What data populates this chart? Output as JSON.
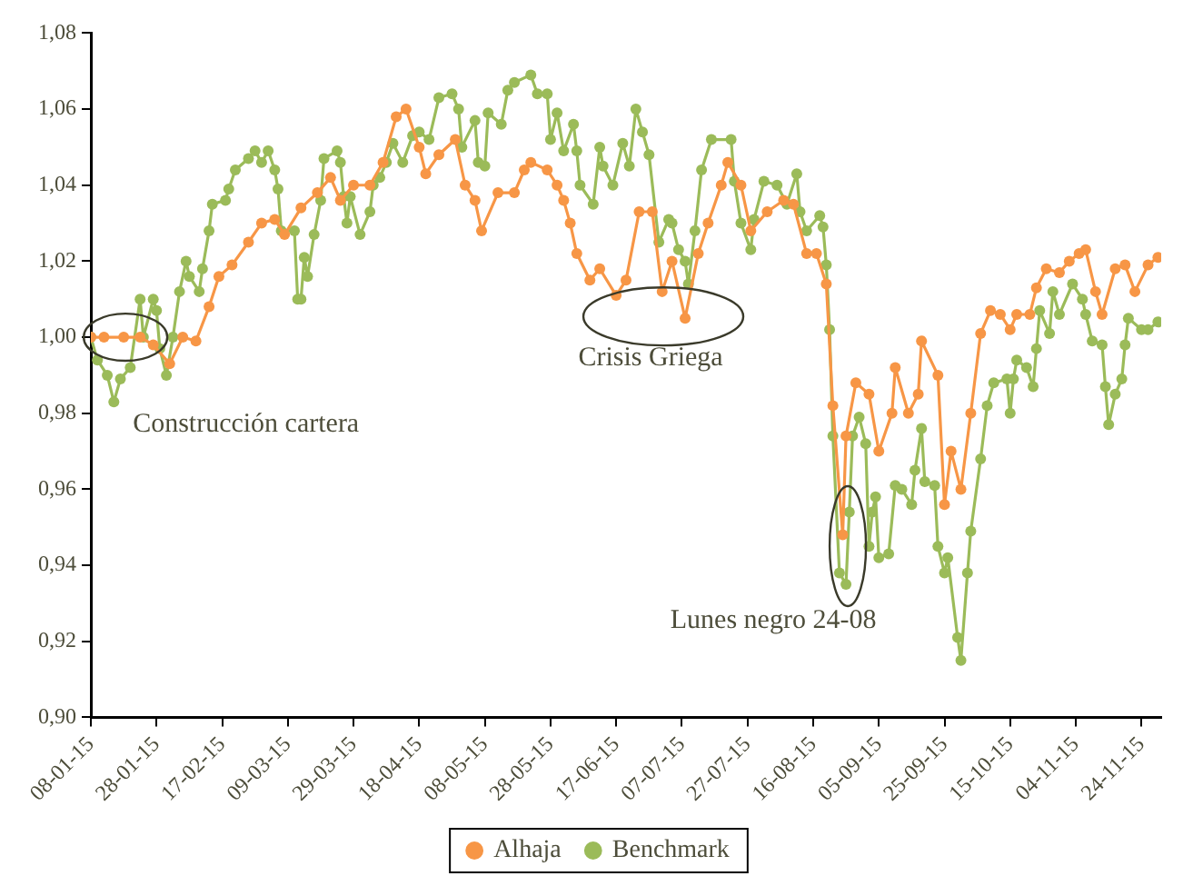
{
  "chart_data": {
    "type": "line",
    "grid": false,
    "legend": "bottom",
    "marker": "circle",
    "line_style": "solid",
    "xlim": [
      "2015-01-08",
      "2015-11-30"
    ],
    "xticks": [
      {
        "value": "2015-01-08",
        "label": "08-01-15"
      },
      {
        "value": "2015-01-28",
        "label": "28-01-15"
      },
      {
        "value": "2015-02-17",
        "label": "17-02-15"
      },
      {
        "value": "2015-03-09",
        "label": "09-03-15"
      },
      {
        "value": "2015-03-29",
        "label": "29-03-15"
      },
      {
        "value": "2015-04-18",
        "label": "18-04-15"
      },
      {
        "value": "2015-05-08",
        "label": "08-05-15"
      },
      {
        "value": "2015-05-28",
        "label": "28-05-15"
      },
      {
        "value": "2015-06-17",
        "label": "17-06-15"
      },
      {
        "value": "2015-07-07",
        "label": "07-07-15"
      },
      {
        "value": "2015-07-27",
        "label": "27-07-15"
      },
      {
        "value": "2015-08-16",
        "label": "16-08-15"
      },
      {
        "value": "2015-09-05",
        "label": "05-09-15"
      },
      {
        "value": "2015-09-25",
        "label": "25-09-15"
      },
      {
        "value": "2015-10-15",
        "label": "15-10-15"
      },
      {
        "value": "2015-11-04",
        "label": "04-11-15"
      },
      {
        "value": "2015-11-24",
        "label": "24-11-15"
      }
    ],
    "ylim": [
      0.9,
      1.08
    ],
    "yticks": [
      {
        "value": 0.9,
        "label": "0,90"
      },
      {
        "value": 0.92,
        "label": "0,92"
      },
      {
        "value": 0.94,
        "label": "0,94"
      },
      {
        "value": 0.96,
        "label": "0,96"
      },
      {
        "value": 0.98,
        "label": "0,98"
      },
      {
        "value": 1.0,
        "label": "1,00"
      },
      {
        "value": 1.02,
        "label": "1,02"
      },
      {
        "value": 1.04,
        "label": "1,04"
      },
      {
        "value": 1.06,
        "label": "1,06"
      },
      {
        "value": 1.08,
        "label": "1,08"
      }
    ],
    "annotations": [
      {
        "text": "Construcción cartera",
        "x": "2015-01-18",
        "y": 1.0
      },
      {
        "text": "Crisis Griega",
        "x": "2015-07-08",
        "y": 1.005
      },
      {
        "text": "Lunes negro 24-08",
        "x": "2015-08-26",
        "y": 0.935
      }
    ],
    "series": [
      {
        "name": "Alhaja",
        "color": "#f79646",
        "x": [
          "2015-01-08",
          "2015-01-12",
          "2015-01-18",
          "2015-01-23",
          "2015-01-27",
          "2015-02-01",
          "2015-02-05",
          "2015-02-09",
          "2015-02-13",
          "2015-02-16",
          "2015-02-20",
          "2015-02-25",
          "2015-03-01",
          "2015-03-05",
          "2015-03-08",
          "2015-03-13",
          "2015-03-18",
          "2015-03-22",
          "2015-03-25",
          "2015-03-29",
          "2015-04-03",
          "2015-04-07",
          "2015-04-11",
          "2015-04-14",
          "2015-04-18",
          "2015-04-20",
          "2015-04-24",
          "2015-04-29",
          "2015-05-02",
          "2015-05-05",
          "2015-05-07",
          "2015-05-12",
          "2015-05-17",
          "2015-05-20",
          "2015-05-22",
          "2015-05-27",
          "2015-05-30",
          "2015-06-01",
          "2015-06-03",
          "2015-06-05",
          "2015-06-09",
          "2015-06-12",
          "2015-06-17",
          "2015-06-20",
          "2015-06-24",
          "2015-06-28",
          "2015-07-01",
          "2015-07-04",
          "2015-07-08",
          "2015-07-12",
          "2015-07-15",
          "2015-07-19",
          "2015-07-21",
          "2015-07-25",
          "2015-07-28",
          "2015-08-02",
          "2015-08-07",
          "2015-08-10",
          "2015-08-14",
          "2015-08-17",
          "2015-08-20",
          "2015-08-22",
          "2015-08-25",
          "2015-08-26",
          "2015-08-29",
          "2015-09-02",
          "2015-09-05",
          "2015-09-09",
          "2015-09-10",
          "2015-09-14",
          "2015-09-17",
          "2015-09-18",
          "2015-09-23",
          "2015-09-25",
          "2015-09-27",
          "2015-09-30",
          "2015-10-03",
          "2015-10-06",
          "2015-10-09",
          "2015-10-12",
          "2015-10-15",
          "2015-10-17",
          "2015-10-21",
          "2015-10-23",
          "2015-10-26",
          "2015-10-30",
          "2015-11-02",
          "2015-11-05",
          "2015-11-07",
          "2015-11-10",
          "2015-11-12",
          "2015-11-16",
          "2015-11-19",
          "2015-11-22",
          "2015-11-26",
          "2015-11-29"
        ],
        "values": [
          1.0,
          1.0,
          1.0,
          1.0,
          0.998,
          0.993,
          1.0,
          0.999,
          1.008,
          1.016,
          1.019,
          1.025,
          1.03,
          1.031,
          1.027,
          1.034,
          1.038,
          1.042,
          1.036,
          1.04,
          1.04,
          1.046,
          1.058,
          1.06,
          1.05,
          1.043,
          1.048,
          1.052,
          1.04,
          1.036,
          1.028,
          1.038,
          1.038,
          1.044,
          1.046,
          1.044,
          1.04,
          1.036,
          1.03,
          1.022,
          1.015,
          1.018,
          1.011,
          1.015,
          1.033,
          1.033,
          1.012,
          1.02,
          1.005,
          1.022,
          1.03,
          1.04,
          1.046,
          1.04,
          1.028,
          1.033,
          1.036,
          1.035,
          1.022,
          1.022,
          1.014,
          0.982,
          0.948,
          0.974,
          0.988,
          0.985,
          0.97,
          0.98,
          0.992,
          0.98,
          0.985,
          0.999,
          0.99,
          0.956,
          0.97,
          0.96,
          0.98,
          1.001,
          1.007,
          1.006,
          1.002,
          1.006,
          1.006,
          1.013,
          1.018,
          1.017,
          1.02,
          1.022,
          1.023,
          1.012,
          1.006,
          1.018,
          1.019,
          1.012,
          1.019,
          1.021
        ]
      },
      {
        "name": "Benchmark",
        "color": "#9bbb59",
        "x": [
          "2015-01-08",
          "2015-01-10",
          "2015-01-13",
          "2015-01-15",
          "2015-01-17",
          "2015-01-20",
          "2015-01-23",
          "2015-01-24",
          "2015-01-27",
          "2015-01-28",
          "2015-01-29",
          "2015-01-31",
          "2015-02-02",
          "2015-02-04",
          "2015-02-06",
          "2015-02-07",
          "2015-02-10",
          "2015-02-11",
          "2015-02-13",
          "2015-02-14",
          "2015-02-18",
          "2015-02-19",
          "2015-02-21",
          "2015-02-25",
          "2015-02-27",
          "2015-03-01",
          "2015-03-03",
          "2015-03-05",
          "2015-03-06",
          "2015-03-07",
          "2015-03-11",
          "2015-03-12",
          "2015-03-13",
          "2015-03-14",
          "2015-03-15",
          "2015-03-17",
          "2015-03-19",
          "2015-03-20",
          "2015-03-24",
          "2015-03-25",
          "2015-03-26",
          "2015-03-27",
          "2015-03-28",
          "2015-03-31",
          "2015-04-03",
          "2015-04-04",
          "2015-04-06",
          "2015-04-08",
          "2015-04-10",
          "2015-04-13",
          "2015-04-16",
          "2015-04-18",
          "2015-04-21",
          "2015-04-24",
          "2015-04-28",
          "2015-04-30",
          "2015-05-01",
          "2015-05-05",
          "2015-05-06",
          "2015-05-08",
          "2015-05-09",
          "2015-05-13",
          "2015-05-15",
          "2015-05-17",
          "2015-05-22",
          "2015-05-24",
          "2015-05-27",
          "2015-05-28",
          "2015-05-30",
          "2015-06-01",
          "2015-06-04",
          "2015-06-05",
          "2015-06-06",
          "2015-06-10",
          "2015-06-12",
          "2015-06-13",
          "2015-06-16",
          "2015-06-19",
          "2015-06-21",
          "2015-06-23",
          "2015-06-25",
          "2015-06-27",
          "2015-06-30",
          "2015-07-03",
          "2015-07-04",
          "2015-07-06",
          "2015-07-08",
          "2015-07-09",
          "2015-07-11",
          "2015-07-13",
          "2015-07-16",
          "2015-07-22",
          "2015-07-23",
          "2015-07-25",
          "2015-07-28",
          "2015-07-29",
          "2015-08-01",
          "2015-08-05",
          "2015-08-08",
          "2015-08-11",
          "2015-08-12",
          "2015-08-14",
          "2015-08-18",
          "2015-08-19",
          "2015-08-20",
          "2015-08-21",
          "2015-08-22",
          "2015-08-24",
          "2015-08-26",
          "2015-08-27",
          "2015-08-28",
          "2015-08-30",
          "2015-09-01",
          "2015-09-02",
          "2015-09-03",
          "2015-09-04",
          "2015-09-05",
          "2015-09-08",
          "2015-09-10",
          "2015-09-12",
          "2015-09-15",
          "2015-09-16",
          "2015-09-18",
          "2015-09-19",
          "2015-09-22",
          "2015-09-23",
          "2015-09-25",
          "2015-09-26",
          "2015-09-29",
          "2015-09-30",
          "2015-10-02",
          "2015-10-03",
          "2015-10-06",
          "2015-10-08",
          "2015-10-10",
          "2015-10-14",
          "2015-10-15",
          "2015-10-16",
          "2015-10-17",
          "2015-10-20",
          "2015-10-22",
          "2015-10-23",
          "2015-10-24",
          "2015-10-27",
          "2015-10-28",
          "2015-10-30",
          "2015-11-03",
          "2015-11-06",
          "2015-11-07",
          "2015-11-09",
          "2015-11-12",
          "2015-11-13",
          "2015-11-14",
          "2015-11-16",
          "2015-11-18",
          "2015-11-19",
          "2015-11-20",
          "2015-11-24",
          "2015-11-26",
          "2015-11-29"
        ],
        "values": [
          1.0,
          0.994,
          0.99,
          0.983,
          0.989,
          0.992,
          1.01,
          1.0,
          1.01,
          1.007,
          0.997,
          0.99,
          1.0,
          1.012,
          1.02,
          1.016,
          1.012,
          1.018,
          1.028,
          1.035,
          1.036,
          1.039,
          1.044,
          1.047,
          1.049,
          1.046,
          1.049,
          1.044,
          1.039,
          1.028,
          1.028,
          1.01,
          1.01,
          1.021,
          1.016,
          1.027,
          1.036,
          1.047,
          1.049,
          1.046,
          1.037,
          1.03,
          1.037,
          1.027,
          1.033,
          1.04,
          1.042,
          1.046,
          1.051,
          1.046,
          1.053,
          1.054,
          1.052,
          1.063,
          1.064,
          1.06,
          1.05,
          1.057,
          1.046,
          1.045,
          1.059,
          1.056,
          1.065,
          1.067,
          1.069,
          1.064,
          1.064,
          1.052,
          1.059,
          1.049,
          1.056,
          1.049,
          1.04,
          1.035,
          1.05,
          1.045,
          1.04,
          1.051,
          1.045,
          1.06,
          1.054,
          1.048,
          1.025,
          1.031,
          1.03,
          1.023,
          1.02,
          1.014,
          1.028,
          1.044,
          1.052,
          1.052,
          1.041,
          1.03,
          1.023,
          1.031,
          1.041,
          1.04,
          1.035,
          1.043,
          1.033,
          1.028,
          1.032,
          1.029,
          1.019,
          1.002,
          0.974,
          0.938,
          0.935,
          0.954,
          0.974,
          0.979,
          0.972,
          0.945,
          0.954,
          0.958,
          0.942,
          0.943,
          0.961,
          0.96,
          0.956,
          0.965,
          0.976,
          0.962,
          0.961,
          0.945,
          0.938,
          0.942,
          0.921,
          0.915,
          0.938,
          0.949,
          0.968,
          0.982,
          0.988,
          0.989,
          0.98,
          0.989,
          0.994,
          0.992,
          0.987,
          0.997,
          1.007,
          1.001,
          1.012,
          1.006,
          1.014,
          1.01,
          1.006,
          0.999,
          0.998,
          0.987,
          0.977,
          0.985,
          0.989,
          0.998,
          1.005,
          1.002,
          1.002,
          1.004
        ]
      }
    ]
  }
}
